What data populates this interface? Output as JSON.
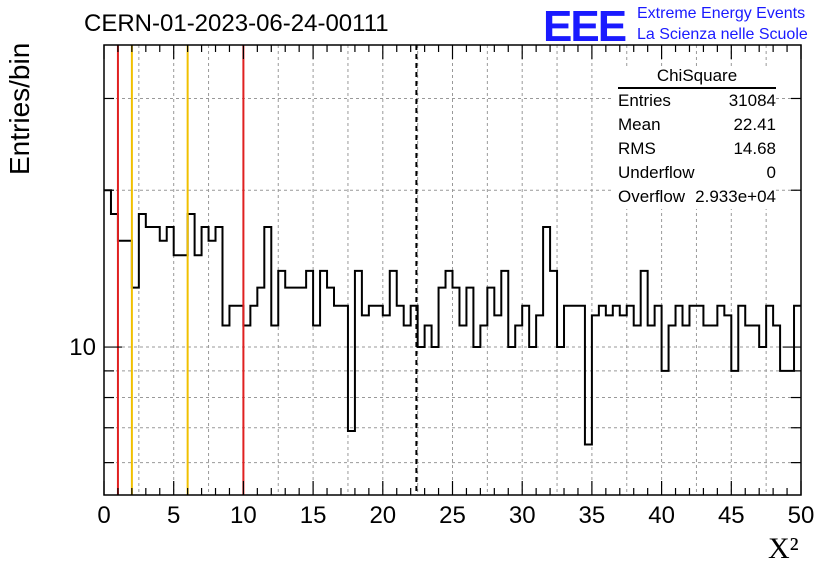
{
  "title": "CERN-01-2023-06-24-00111",
  "logo": {
    "mark": "EEE",
    "line1": "Extreme Energy Events",
    "line2": "La Scienza nelle Scuole",
    "color": "#1a1aff"
  },
  "stats": {
    "title": "ChiSquare",
    "rows": [
      {
        "label": "Entries",
        "value": "31084"
      },
      {
        "label": "Mean",
        "value": "22.41"
      },
      {
        "label": "RMS",
        "value": "14.68"
      },
      {
        "label": "Underflow",
        "value": "0"
      },
      {
        "label": "Overflow",
        "value": "2.933e+04"
      }
    ]
  },
  "chart_data": {
    "type": "histogram",
    "title": "CERN-01-2023-06-24-00111",
    "xlabel": "X²",
    "ylabel": "Entries/bin",
    "y_scale": "log",
    "xlim": [
      0,
      50
    ],
    "ylim": [
      5.2,
      38
    ],
    "bin_width": 0.5,
    "x_ticks": [
      0,
      5,
      10,
      15,
      20,
      25,
      30,
      35,
      40,
      45,
      50
    ],
    "y_ticks": [
      10
    ],
    "grid": true,
    "values": [
      20,
      18,
      16,
      16,
      13,
      18,
      17,
      17,
      16,
      17,
      15,
      15,
      18,
      15,
      17,
      16,
      17,
      11,
      12,
      12,
      11,
      12,
      13,
      17,
      11,
      14,
      13,
      13,
      13,
      14,
      11,
      14,
      13,
      12,
      12,
      6.9,
      14,
      11.5,
      12,
      12,
      11.5,
      14,
      12,
      11,
      12,
      10,
      11,
      10,
      13,
      14,
      13,
      11,
      13,
      10,
      11,
      13,
      11.5,
      14,
      10,
      11,
      12,
      10,
      11.5,
      17,
      14,
      10,
      12,
      12,
      12,
      6.5,
      11.5,
      12,
      11.5,
      12,
      11.5,
      12,
      11,
      14,
      11,
      12,
      9,
      11,
      12,
      11,
      12,
      12,
      11,
      11,
      12,
      11.5,
      9,
      12,
      11,
      11,
      10,
      12,
      11,
      9,
      9,
      12
    ],
    "vertical_lines": [
      {
        "x": 1,
        "color": "#e02020",
        "style": "solid"
      },
      {
        "x": 2,
        "color": "#f0c000",
        "style": "solid"
      },
      {
        "x": 6,
        "color": "#f0c000",
        "style": "solid"
      },
      {
        "x": 10,
        "color": "#e02020",
        "style": "solid"
      },
      {
        "x": 22.41,
        "color": "#000000",
        "style": "dashed"
      }
    ],
    "legend": "top-right"
  }
}
